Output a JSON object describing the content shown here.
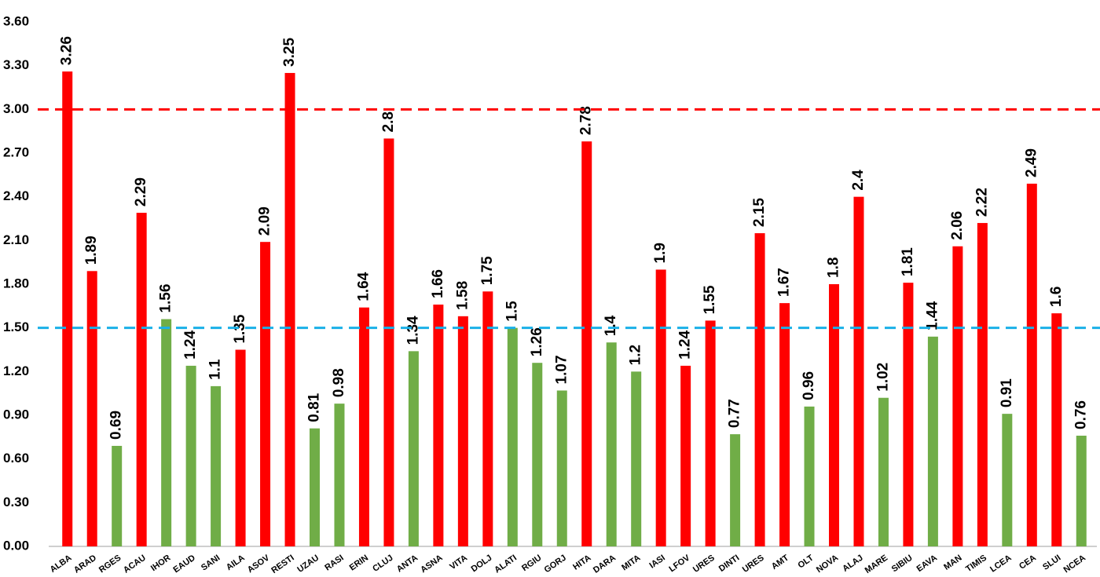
{
  "chart_data": {
    "type": "bar",
    "categories": [
      "ALBA",
      "ARAD",
      "RGES",
      "ACAU",
      "IHOR",
      "EAUD",
      "SANI",
      "AILA",
      "ASOV",
      "RESTI",
      "UZAU",
      "RASI",
      "ERIN",
      "CLUJ",
      "ANTA",
      "ASNA",
      "VITA",
      "DOLJ",
      "ALATI",
      "RGIU",
      "GORJ",
      "HITA",
      "DARA",
      "MITA",
      "IASI",
      "LFOV",
      "URES",
      "DINTI",
      "URES",
      "AMT",
      "OLT",
      "NOVA",
      "ALAJ",
      "MARE",
      "SIBIU",
      "EAVA",
      "MAN",
      "TIMIS",
      "LCEA",
      "CEA",
      "SLUI",
      "NCEA"
    ],
    "values": [
      3.26,
      1.89,
      0.69,
      2.29,
      1.56,
      1.24,
      1.1,
      1.35,
      2.09,
      3.25,
      0.81,
      0.98,
      1.64,
      2.8,
      1.34,
      1.66,
      1.58,
      1.75,
      1.5,
      1.26,
      1.07,
      2.78,
      1.4,
      1.2,
      1.9,
      1.24,
      1.55,
      0.77,
      2.15,
      1.67,
      0.96,
      1.8,
      2.4,
      1.02,
      1.81,
      1.44,
      2.06,
      2.22,
      0.91,
      2.49,
      1.6,
      0.76
    ],
    "colors": [
      "#ff0000",
      "#ff0000",
      "#70ad47",
      "#ff0000",
      "#70ad47",
      "#70ad47",
      "#70ad47",
      "#ff0000",
      "#ff0000",
      "#ff0000",
      "#70ad47",
      "#70ad47",
      "#ff0000",
      "#ff0000",
      "#70ad47",
      "#ff0000",
      "#ff0000",
      "#ff0000",
      "#70ad47",
      "#70ad47",
      "#70ad47",
      "#ff0000",
      "#70ad47",
      "#70ad47",
      "#ff0000",
      "#ff0000",
      "#ff0000",
      "#70ad47",
      "#ff0000",
      "#ff0000",
      "#70ad47",
      "#ff0000",
      "#ff0000",
      "#70ad47",
      "#ff0000",
      "#70ad47",
      "#ff0000",
      "#ff0000",
      "#70ad47",
      "#ff0000",
      "#ff0000",
      "#70ad47"
    ],
    "ylim": [
      0,
      3.6
    ],
    "yticks": [
      {
        "value": 0,
        "label": "0.00"
      },
      {
        "value": 0.3,
        "label": "0.30"
      },
      {
        "value": 0.6,
        "label": "0.60"
      },
      {
        "value": 0.9,
        "label": "0.90"
      },
      {
        "value": 1.2,
        "label": "1.20"
      },
      {
        "value": 1.5,
        "label": "1.50"
      },
      {
        "value": 1.8,
        "label": "1.80"
      },
      {
        "value": 2.1,
        "label": "2.10"
      },
      {
        "value": 2.4,
        "label": "2.40"
      },
      {
        "value": 2.7,
        "label": "2.70"
      },
      {
        "value": 3,
        "label": "3.00"
      },
      {
        "value": 3.3,
        "label": "3.30"
      },
      {
        "value": 3.6,
        "label": "3.60"
      }
    ],
    "reference_lines": [
      {
        "value": 3,
        "color": "#ff0000"
      },
      {
        "value": 1.5,
        "color": "#1ab0e8"
      }
    ],
    "grid": false
  }
}
